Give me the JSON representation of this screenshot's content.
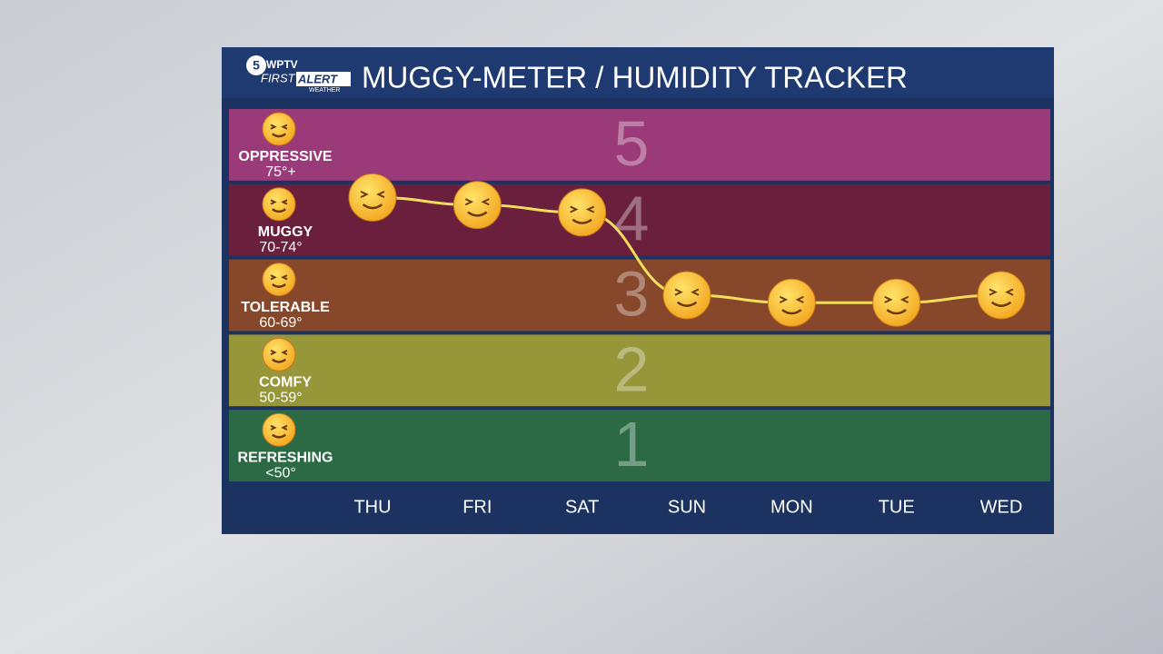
{
  "logo": {
    "number": "5",
    "station": "WPTV",
    "first": "FIRST",
    "alert": "ALERT",
    "sub": "WEATHER"
  },
  "chart_data": {
    "type": "line",
    "title": "MUGGY-METER / HUMIDITY TRACKER",
    "categories": [
      "THU",
      "FRI",
      "SAT",
      "SUN",
      "MON",
      "TUE",
      "WED"
    ],
    "values": [
      4.3,
      4.2,
      4.1,
      3.0,
      2.9,
      2.9,
      3.0
    ],
    "color": "#f3dd5c",
    "ylim": [
      0.5,
      5.5
    ],
    "bands": [
      {
        "level": 5,
        "label": "OPPRESSIVE",
        "range": "75°+",
        "color": "#9a3a78"
      },
      {
        "level": 4,
        "label": "MUGGY",
        "range": "70-74°",
        "color": "#6a1f3c"
      },
      {
        "level": 3,
        "label": "TOLERABLE",
        "range": "60-69°",
        "color": "#86472a"
      },
      {
        "level": 2,
        "label": "COMFY",
        "range": "50-59°",
        "color": "#979639"
      },
      {
        "level": 1,
        "label": "REFRESHING",
        "range": "<50°",
        "color": "#2b6a45"
      }
    ]
  }
}
